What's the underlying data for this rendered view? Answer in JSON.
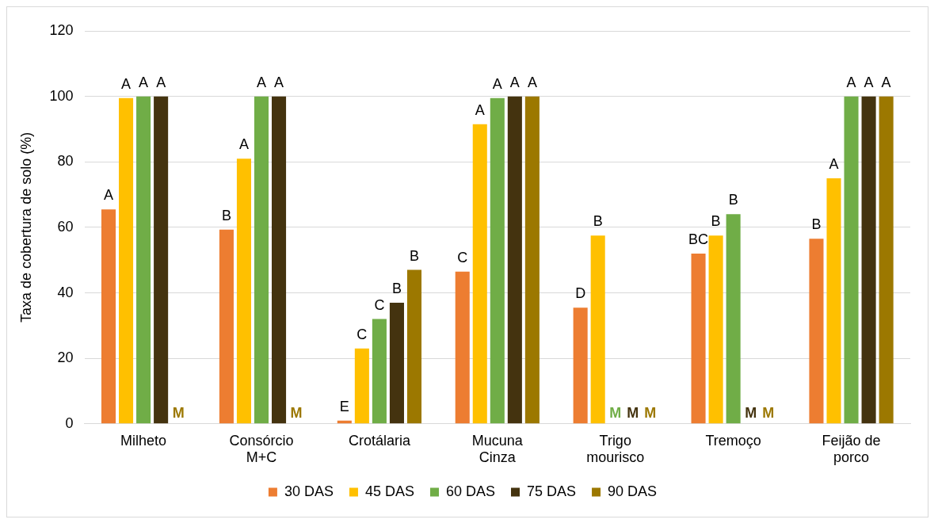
{
  "chart_data": {
    "type": "bar",
    "ylabel": "Taxa de cobertura de solo (%)",
    "categories": [
      "Milheto",
      "Consórcio M+C",
      "Crotálaria",
      "Mucuna Cinza",
      "Trigo mourisco",
      "Tremoço",
      "Feijão de porco"
    ],
    "series": [
      {
        "name": "30 DAS",
        "color": "#ed7d31",
        "values": [
          65.5,
          59.3,
          1,
          46.5,
          35.5,
          52,
          56.5
        ],
        "value_labels": [
          "A",
          "B",
          "E",
          "C",
          "D",
          "BC",
          "B"
        ]
      },
      {
        "name": "45 DAS",
        "color": "#ffc000",
        "values": [
          99.5,
          81,
          23,
          91.5,
          57.5,
          57.5,
          75
        ],
        "value_labels": [
          "A",
          "A",
          "C",
          "A",
          "B",
          "B",
          "A"
        ]
      },
      {
        "name": "60 DAS",
        "color": "#70ad47",
        "values": [
          100,
          100,
          32,
          99.5,
          null,
          64,
          100
        ],
        "value_labels": [
          "A",
          "A",
          "C",
          "A",
          "M",
          "B",
          "A"
        ]
      },
      {
        "name": "75 DAS",
        "color": "#44330f",
        "values": [
          100,
          100,
          37,
          100,
          null,
          null,
          100
        ],
        "value_labels": [
          "A",
          "A",
          "B",
          "A",
          "M",
          "M",
          "A"
        ]
      },
      {
        "name": "90 DAS",
        "color": "#9c7800",
        "values": [
          null,
          null,
          47,
          100,
          null,
          null,
          100
        ],
        "value_labels": [
          "M",
          "M",
          "B",
          "A",
          "M",
          "M",
          "A"
        ]
      }
    ],
    "ylim": [
      0,
      120
    ],
    "yticks": [
      0,
      20,
      40,
      60,
      80,
      100,
      120
    ],
    "grid": "y",
    "legend": "bottom"
  }
}
